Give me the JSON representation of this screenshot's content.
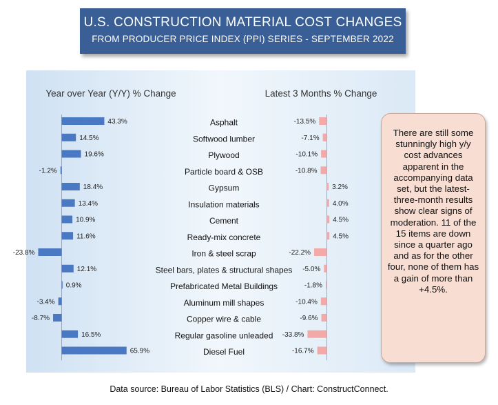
{
  "title": "U.S. CONSTRUCTION MATERIAL COST CHANGES",
  "subtitle": "FROM PRODUCER PRICE INDEX (PPI) SERIES - SEPTEMBER 2022",
  "source": "Data source: Bureau of Labor Statistics (BLS) / Chart: ConstructConnect.",
  "note": "There are still some stunningly high y/y cost advances apparent in the accompanying data set, but the latest-three-month results show clear signs of moderation. 11 of the 15 items are down since a quarter ago and as for the other four, none of them has a gain of more than +4.5%.",
  "colors": {
    "title_bg": "#3a5f97",
    "bar_yy": "#4a78c2",
    "bar_3m": "#f4a9a9",
    "note_bg": "#f8ddd2"
  },
  "chart_data": {
    "type": "bar",
    "orientation": "horizontal",
    "categories": [
      "Asphalt",
      "Softwood lumber",
      "Plywood",
      "Particle board & OSB",
      "Gypsum",
      "Insulation materials",
      "Cement",
      "Ready-mix concrete",
      "Iron & steel scrap",
      "Steel bars, plates & structural shapes",
      "Prefabricated Metal Buildings",
      "Aluminum mill shapes",
      "Copper wire & cable",
      "Regular gasoline unleaded",
      "Diesel Fuel"
    ],
    "series": [
      {
        "name": "Year over Year (Y/Y) % Change",
        "values": [
          43.3,
          14.5,
          19.6,
          -1.2,
          18.4,
          13.4,
          10.9,
          11.6,
          -23.8,
          12.1,
          0.9,
          -3.4,
          -8.7,
          16.5,
          65.9
        ]
      },
      {
        "name": "Latest 3 Months % Change",
        "values": [
          -13.5,
          -7.1,
          -10.1,
          -10.8,
          3.2,
          4.0,
          4.5,
          4.5,
          -22.2,
          -5.0,
          -1.8,
          -10.4,
          -9.6,
          -33.8,
          -16.7
        ]
      }
    ],
    "value_labels": {
      "yy": [
        "43.3%",
        "14.5%",
        "19.6%",
        "-1.2%",
        "18.4%",
        "13.4%",
        "10.9%",
        "11.6%",
        "-23.8%",
        "12.1%",
        "0.9%",
        "-3.4%",
        "-8.7%",
        "16.5%",
        "65.9%"
      ],
      "m3": [
        "-13.5%",
        "-7.1%",
        "-10.1%",
        "-10.8%",
        "3.2%",
        "4.0%",
        "4.5%",
        "4.5%",
        "-22.2%",
        "-5.0%",
        "-1.8%",
        "-10.4%",
        "-9.6%",
        "-33.8%",
        "-16.7%"
      ]
    }
  }
}
